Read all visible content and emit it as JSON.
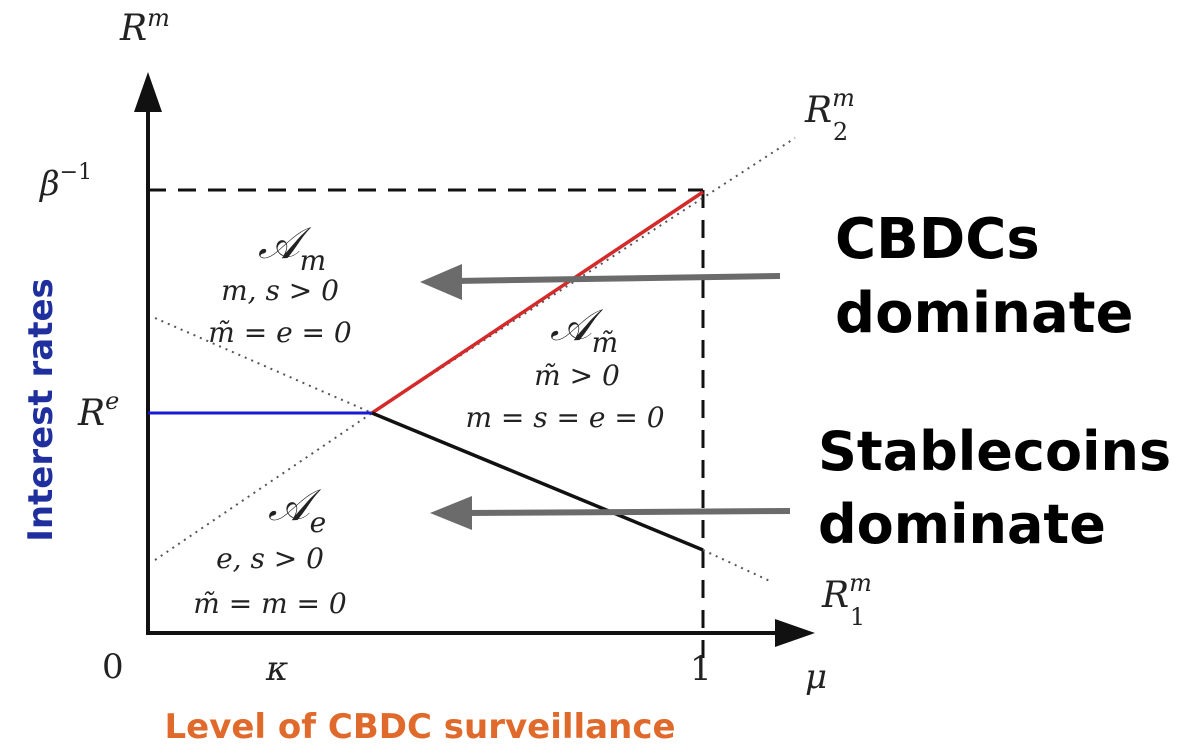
{
  "colors": {
    "axis": "#111111",
    "blue_segment": "#1a1ad6",
    "red_segment": "#d42a2a",
    "black_segment": "#111111",
    "arrow_gray": "#6b6b6b",
    "y_label": "#1f2f9e",
    "x_label": "#e06a2b"
  },
  "axes": {
    "y_var": "R",
    "y_var_sup": "m",
    "x_var": "μ",
    "origin": "0",
    "y_ticks": {
      "beta": "β",
      "beta_sup": "−1",
      "re": "R",
      "re_sup": "e"
    },
    "x_ticks": {
      "kappa": "κ",
      "one": "1"
    }
  },
  "lines": {
    "r2": {
      "main": "R",
      "sup": "m",
      "sub": "2"
    },
    "r1": {
      "main": "R",
      "sup": "m",
      "sub": "1"
    }
  },
  "regions": {
    "am": {
      "letter": "𝒜",
      "sub": "m",
      "cond1": "m, s > 0",
      "cond2": "m̃ = e = 0"
    },
    "amt": {
      "letter": "𝒜",
      "sub": "m̃",
      "cond1": "m̃ > 0",
      "cond2": "m = s = e = 0"
    },
    "ae": {
      "letter": "𝒜",
      "sub": "e",
      "cond1": "e, s > 0",
      "cond2": "m̃ = m = 0"
    }
  },
  "annotations": {
    "cbdc_line1": "CBDCs",
    "cbdc_line2": "dominate",
    "stable_line1": "Stablecoins",
    "stable_line2": "dominate"
  },
  "y_axis_label": "Interest rates",
  "x_axis_label": "Level of CBDC surveillance"
}
